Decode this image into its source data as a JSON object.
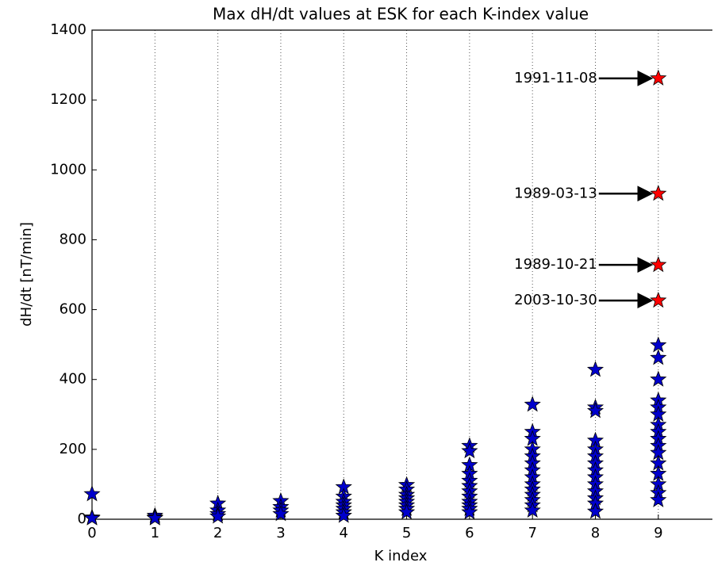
{
  "chart_data": {
    "type": "scatter",
    "title": "Max dH/dt values at ESK for each K-index value",
    "x_label": "K index",
    "y_label": "dH/dt [nT/min]",
    "series": [
      {
        "name": "Max dH/dt",
        "color": "#0000cc",
        "x": [
          0,
          0,
          0,
          1,
          1,
          1,
          2,
          2,
          2,
          2,
          3,
          3,
          3,
          3,
          4,
          4,
          4,
          4,
          4,
          4,
          4,
          5,
          5,
          5,
          5,
          5,
          5,
          5,
          5,
          6,
          6,
          6,
          6,
          6,
          6,
          6,
          6,
          6,
          6,
          6,
          6,
          7,
          7,
          7,
          7,
          7,
          7,
          7,
          7,
          7,
          7,
          7,
          7,
          7,
          7,
          8,
          8,
          8,
          8,
          8,
          8,
          8,
          8,
          8,
          8,
          8,
          8,
          8,
          8,
          9,
          9,
          9,
          9,
          9,
          9,
          9,
          9,
          9,
          9,
          9,
          9,
          9,
          9,
          9,
          9
        ],
        "values": [
          72,
          5,
          3,
          10,
          5,
          3,
          45,
          25,
          15,
          8,
          52,
          35,
          25,
          15,
          92,
          65,
          50,
          40,
          30,
          20,
          10,
          98,
          85,
          70,
          60,
          50,
          40,
          30,
          20,
          210,
          195,
          155,
          130,
          110,
          95,
          80,
          65,
          50,
          40,
          30,
          20,
          328,
          250,
          230,
          200,
          180,
          160,
          140,
          120,
          100,
          85,
          70,
          55,
          40,
          25,
          428,
          320,
          310,
          225,
          200,
          180,
          160,
          140,
          120,
          100,
          80,
          60,
          45,
          22,
          498,
          462,
          400,
          340,
          320,
          300,
          270,
          250,
          230,
          210,
          190,
          160,
          130,
          100,
          75,
          55
        ]
      }
    ],
    "annotations": [
      {
        "label": "1991-11-08",
        "x": 9,
        "y": 1262
      },
      {
        "label": "1989-03-13",
        "x": 9,
        "y": 932
      },
      {
        "label": "1989-10-21",
        "x": 9,
        "y": 728
      },
      {
        "label": "2003-10-30",
        "x": 9,
        "y": 626
      }
    ],
    "annotation_color": "#ff0000",
    "xlim": [
      0,
      10
    ],
    "xticks": [
      0,
      1,
      2,
      3,
      4,
      5,
      6,
      7,
      8,
      9
    ],
    "ylim": [
      0,
      1400
    ],
    "yticks": [
      0,
      200,
      400,
      600,
      800,
      1000,
      1200,
      1400
    ],
    "xgrid": true
  }
}
